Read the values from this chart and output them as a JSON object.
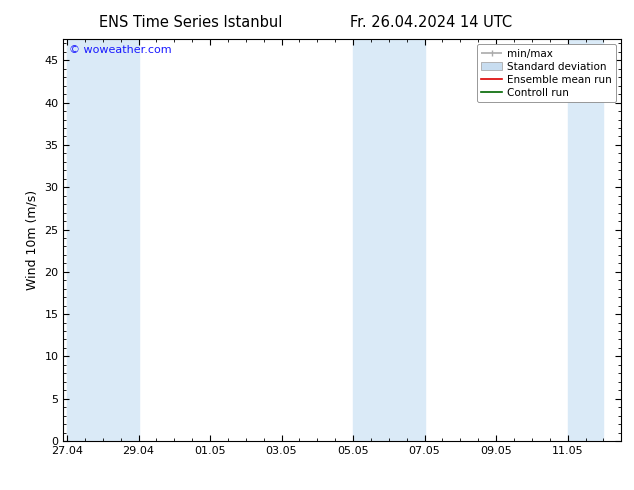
{
  "title_left": "ENS Time Series Istanbul",
  "title_right": "Fr. 26.04.2024 14 UTC",
  "ylabel": "Wind 10m (m/s)",
  "ylim": [
    0,
    47.5
  ],
  "yticks": [
    0,
    5,
    10,
    15,
    20,
    25,
    30,
    35,
    40,
    45
  ],
  "watermark": "© woweather.com",
  "watermark_color": "#1a1aff",
  "bg_color": "#ffffff",
  "plot_bg_color": "#ffffff",
  "shade_color": "#daeaf7",
  "border_color": "#000000",
  "legend_labels": [
    "min/max",
    "Standard deviation",
    "Ensemble mean run",
    "Controll run"
  ],
  "legend_line_color": "#aaaaaa",
  "legend_std_color": "#c8ddf0",
  "legend_mean_color": "#dd0000",
  "legend_ctrl_color": "#006600",
  "x_tick_labels": [
    "27.04",
    "29.04",
    "01.05",
    "03.05",
    "05.05",
    "07.05",
    "09.05",
    "11.05"
  ],
  "x_tick_positions": [
    0,
    2,
    4,
    6,
    8,
    10,
    12,
    14
  ],
  "xlim": [
    -0.1,
    15.5
  ],
  "shaded_bands": [
    [
      0,
      1
    ],
    [
      1,
      2
    ],
    [
      8,
      9
    ],
    [
      9,
      10
    ],
    [
      14,
      15
    ]
  ],
  "title_fontsize": 10.5,
  "ylabel_fontsize": 9,
  "tick_fontsize": 8,
  "legend_fontsize": 7.5
}
